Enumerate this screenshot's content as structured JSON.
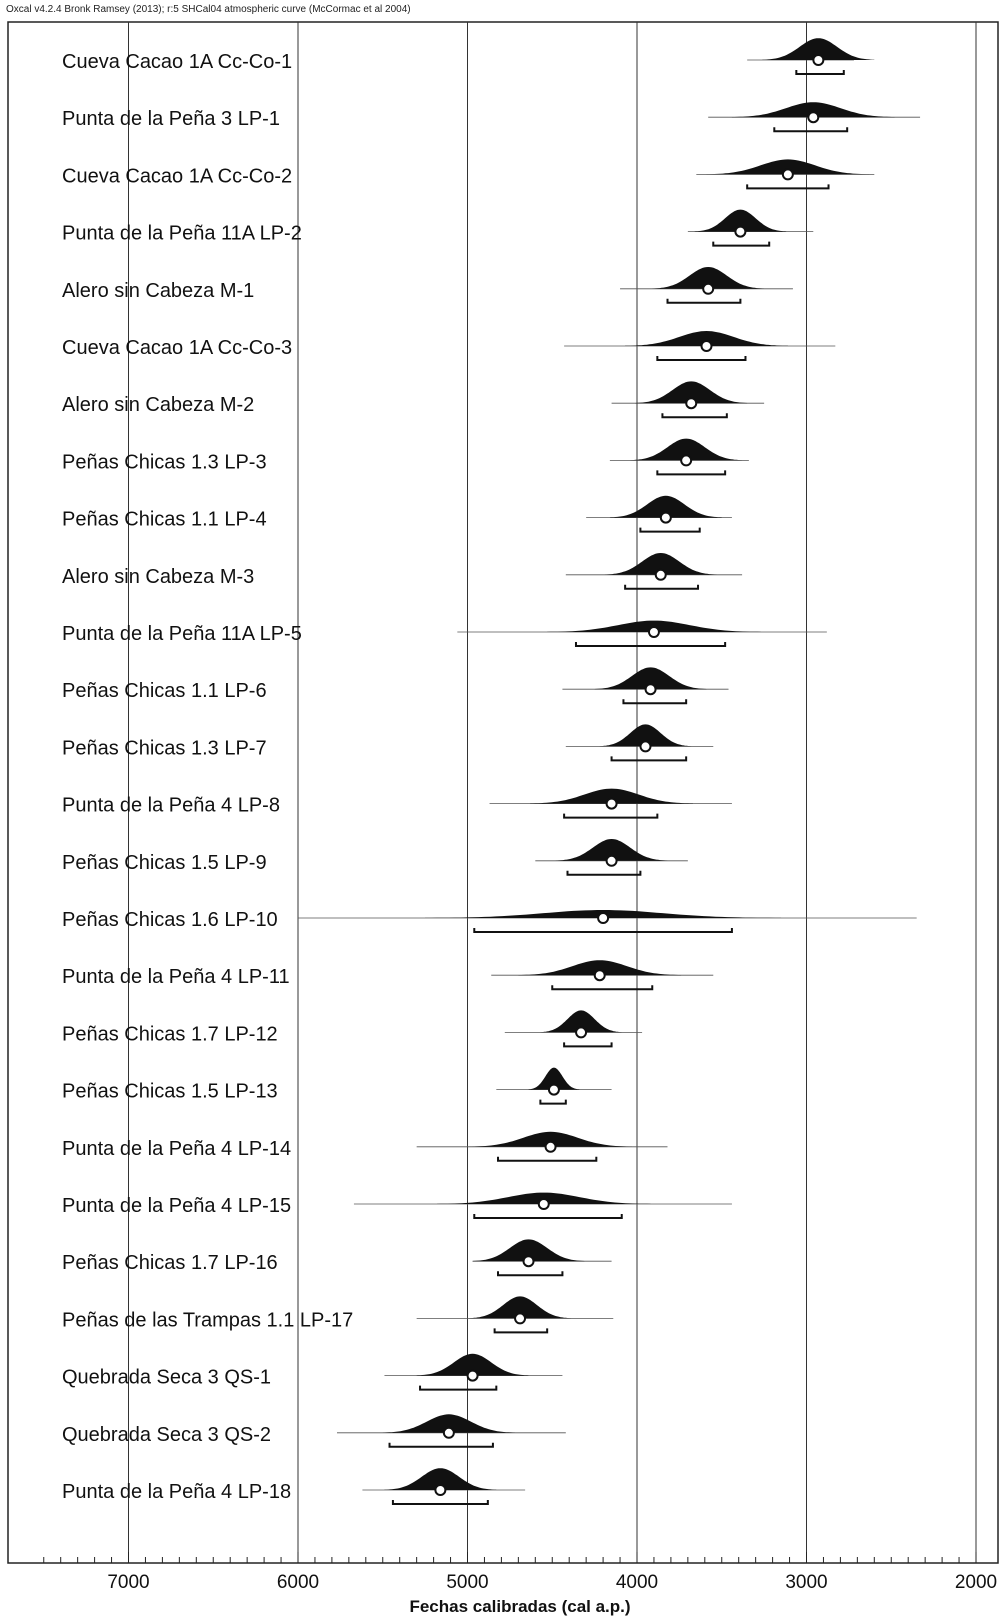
{
  "header": "Oxcal v4.2.4 Bronk Ramsey (2013); r:5 SHCal04 atmospheric curve (McCormac et al 2004)",
  "chart_data": {
    "type": "range",
    "xlabel": "Fechas calibradas (cal a.p.)",
    "xlim": [
      7500,
      1950
    ],
    "x_ticks": [
      7000,
      6000,
      5000,
      4000,
      3000,
      2000
    ],
    "samples": [
      {
        "name": "Cueva Cacao 1A Cc-Co-1",
        "median": 2930,
        "r95": [
          3060,
          2780
        ],
        "wide": [
          3350,
          2720
        ],
        "spread": 110
      },
      {
        "name": "Punta de la Peña 3 LP-1",
        "median": 2960,
        "r95": [
          3190,
          2760
        ],
        "wide": [
          3580,
          2330
        ],
        "spread": 160
      },
      {
        "name": "Cueva Cacao 1A Cc-Co-2",
        "median": 3110,
        "r95": [
          3350,
          2870
        ],
        "wide": [
          3650,
          2600
        ],
        "spread": 160
      },
      {
        "name": "Punta de la Peña 11A LP-2",
        "median": 3390,
        "r95": [
          3550,
          3220
        ],
        "wide": [
          3700,
          2960
        ],
        "spread": 90
      },
      {
        "name": "Alero sin Cabeza M-1",
        "median": 3580,
        "r95": [
          3820,
          3390
        ],
        "wide": [
          4100,
          3080
        ],
        "spread": 110
      },
      {
        "name": "Cueva Cacao 1A Cc-Co-3",
        "median": 3590,
        "r95": [
          3880,
          3360
        ],
        "wide": [
          4430,
          2830
        ],
        "spread": 160
      },
      {
        "name": "Alero sin Cabeza M-2",
        "median": 3680,
        "r95": [
          3850,
          3470
        ],
        "wide": [
          4150,
          3250
        ],
        "spread": 110
      },
      {
        "name": "Peñas Chicas 1.3 LP-3",
        "median": 3710,
        "r95": [
          3880,
          3480
        ],
        "wide": [
          4160,
          3340
        ],
        "spread": 110
      },
      {
        "name": "Peñas Chicas 1.1 LP-4",
        "median": 3830,
        "r95": [
          3980,
          3630
        ],
        "wide": [
          4300,
          3440
        ],
        "spread": 110
      },
      {
        "name": "Alero sin Cabeza M-3",
        "median": 3860,
        "r95": [
          4070,
          3640
        ],
        "wide": [
          4420,
          3380
        ],
        "spread": 110
      },
      {
        "name": "Punta de la Peña 11A LP-5",
        "median": 3900,
        "r95": [
          4360,
          3480
        ],
        "wide": [
          5060,
          2880
        ],
        "spread": 210
      },
      {
        "name": "Peñas Chicas 1.1 LP-6",
        "median": 3920,
        "r95": [
          4080,
          3710
        ],
        "wide": [
          4440,
          3460
        ],
        "spread": 110
      },
      {
        "name": "Peñas Chicas 1.3 LP-7",
        "median": 3950,
        "r95": [
          4150,
          3710
        ],
        "wide": [
          4420,
          3550
        ],
        "spread": 90
      },
      {
        "name": "Punta de la Peña 4 LP-8",
        "median": 4150,
        "r95": [
          4430,
          3880
        ],
        "wide": [
          4870,
          3440
        ],
        "spread": 160
      },
      {
        "name": "Peñas Chicas 1.5 LP-9",
        "median": 4150,
        "r95": [
          4410,
          3980
        ],
        "wide": [
          4600,
          3700
        ],
        "spread": 110
      },
      {
        "name": "Peñas Chicas 1.6 LP-10",
        "median": 4200,
        "r95": [
          4960,
          3440
        ],
        "wide": [
          6000,
          2350
        ],
        "spread": 350
      },
      {
        "name": "Punta de la Peña 4 LP-11",
        "median": 4220,
        "r95": [
          4500,
          3910
        ],
        "wide": [
          4860,
          3550
        ],
        "spread": 160
      },
      {
        "name": "Peñas Chicas 1.7 LP-12",
        "median": 4330,
        "r95": [
          4430,
          4150
        ],
        "wide": [
          4780,
          3970
        ],
        "spread": 80
      },
      {
        "name": "Peñas Chicas 1.5 LP-13",
        "median": 4490,
        "r95": [
          4570,
          4420
        ],
        "wide": [
          4830,
          4150
        ],
        "spread": 50
      },
      {
        "name": "Punta de la Peña 4 LP-14",
        "median": 4510,
        "r95": [
          4820,
          4240
        ],
        "wide": [
          5300,
          3820
        ],
        "spread": 160
      },
      {
        "name": "Punta de la Peña 4 LP-15",
        "median": 4550,
        "r95": [
          4960,
          4090
        ],
        "wide": [
          5670,
          3440
        ],
        "spread": 210
      },
      {
        "name": "Peñas Chicas 1.7 LP-16",
        "median": 4640,
        "r95": [
          4820,
          4440
        ],
        "wide": [
          4970,
          4150
        ],
        "spread": 110
      },
      {
        "name": "Peñas de las Trampas 1.1 LP-17",
        "median": 4690,
        "r95": [
          4840,
          4530
        ],
        "wide": [
          5300,
          4140
        ],
        "spread": 100
      },
      {
        "name": "Quebrada Seca 3 QS-1",
        "median": 4970,
        "r95": [
          5280,
          4830
        ],
        "wide": [
          5490,
          4440
        ],
        "spread": 110
      },
      {
        "name": "Quebrada Seca 3 QS-2",
        "median": 5110,
        "r95": [
          5460,
          4850
        ],
        "wide": [
          5770,
          4420
        ],
        "spread": 130
      },
      {
        "name": "Punta de la Peña 4 LP-18",
        "median": 5160,
        "r95": [
          5440,
          4880
        ],
        "wide": [
          5620,
          4660
        ],
        "spread": 110
      }
    ]
  }
}
